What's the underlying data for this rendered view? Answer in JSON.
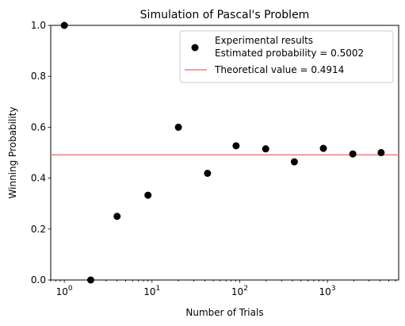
{
  "chart_data": {
    "type": "scatter",
    "title": "Simulation of Pascal's Problem",
    "xlabel": "Number of Trials",
    "ylabel": "Winning Probability",
    "xscale": "log",
    "xlim": [
      0.7,
      6500
    ],
    "ylim": [
      0.0,
      1.0
    ],
    "x_ticks": [
      1,
      10,
      100,
      1000
    ],
    "x_tick_labels": [
      {
        "base": "10",
        "exp": "0"
      },
      {
        "base": "10",
        "exp": "1"
      },
      {
        "base": "10",
        "exp": "2"
      },
      {
        "base": "10",
        "exp": "3"
      }
    ],
    "y_ticks": [
      0.0,
      0.2,
      0.4,
      0.6,
      0.8,
      1.0
    ],
    "y_tick_labels": [
      "0.0",
      "0.2",
      "0.4",
      "0.6",
      "0.8",
      "1.0"
    ],
    "grid": false,
    "legend_position": "top-right",
    "series": [
      {
        "name": "Experimental results",
        "legend_line2": "Estimated probability = 0.5002",
        "color": "#000000",
        "marker": "circle",
        "x": [
          1,
          2,
          4,
          9,
          20,
          43,
          91,
          198,
          420,
          900,
          1950,
          4100
        ],
        "y": [
          1.0,
          0.0,
          0.25,
          0.333,
          0.6,
          0.419,
          0.527,
          0.515,
          0.464,
          0.517,
          0.495,
          0.5002
        ]
      }
    ],
    "reference_lines": [
      {
        "name": "Theoretical value = 0.4914",
        "y": 0.4914,
        "color": "#f08080"
      }
    ]
  }
}
